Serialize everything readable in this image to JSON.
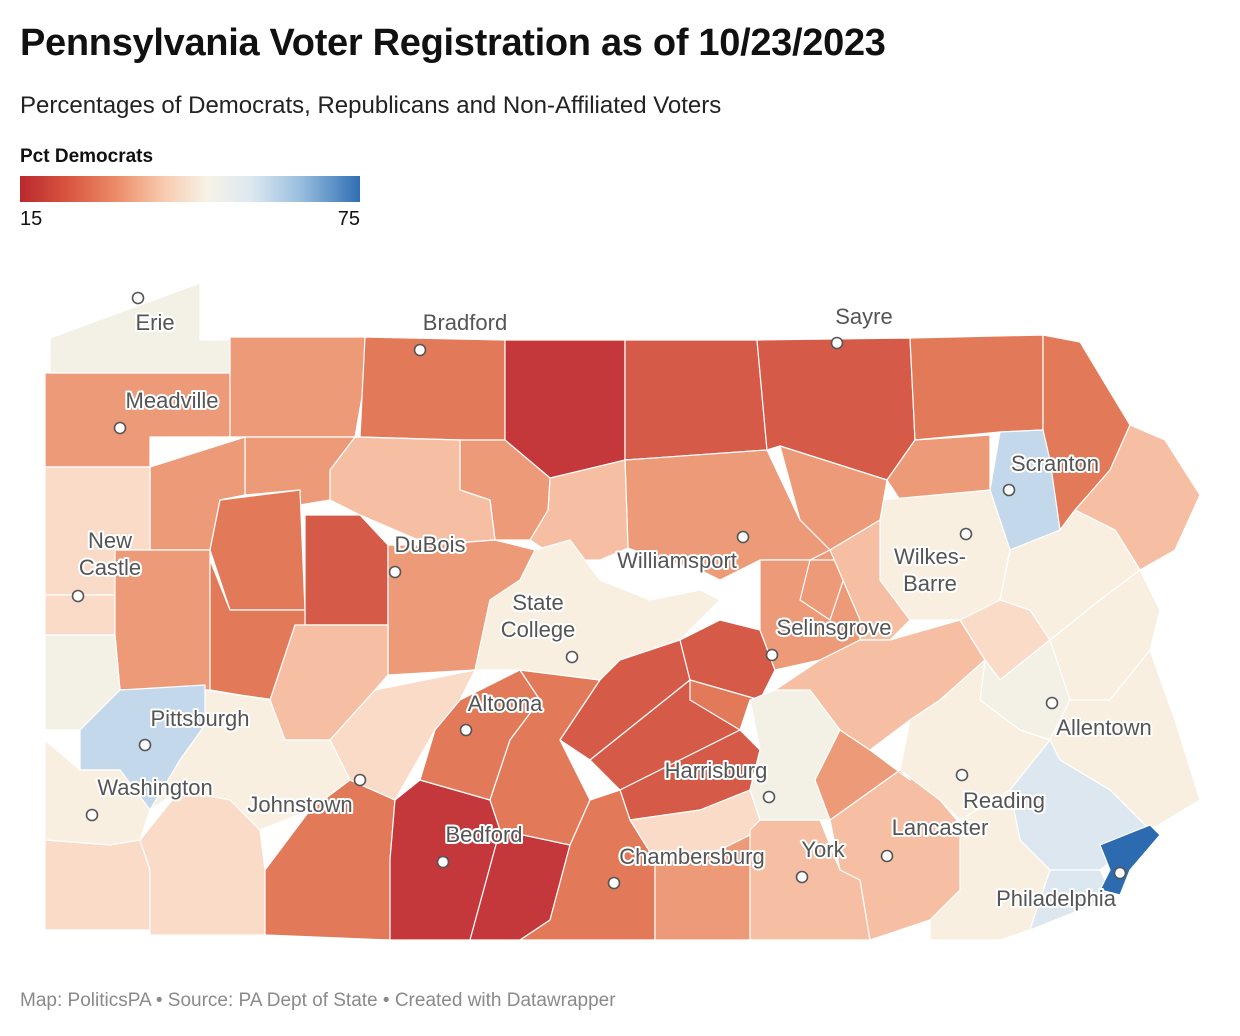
{
  "title": "Pennsylvania Voter Registration as of 10/23/2023",
  "subtitle": "Percentages of Democrats, Republicans and Non-Affiliated Voters",
  "legend": {
    "title": "Pct Democrats",
    "min": "15",
    "max": "75"
  },
  "footer": "Map: PoliticsPA • Source: PA Dept of State • Created with Datawrapper",
  "colors": {
    "dark_red": "#c4373a",
    "red": "#d55a48",
    "orange_red": "#e27a5a",
    "salmon": "#ec9a78",
    "light_salmon": "#f6bfa3",
    "peach": "#fadbc8",
    "cream": "#f8efe0",
    "neutral": "#f3f1e6",
    "light_blue": "#c3d8ea",
    "pale_blue": "#dde7ef",
    "blue": "#2c6bb0"
  },
  "cities": [
    {
      "name": "Erie",
      "lines": [
        "Erie"
      ]
    },
    {
      "name": "Meadville",
      "lines": [
        "Meadville"
      ]
    },
    {
      "name": "New Castle",
      "lines": [
        "New",
        "Castle"
      ]
    },
    {
      "name": "Pittsburgh",
      "lines": [
        "Pittsburgh"
      ]
    },
    {
      "name": "Washington",
      "lines": [
        "Washington"
      ]
    },
    {
      "name": "Johnstown",
      "lines": [
        "Johnstown"
      ]
    },
    {
      "name": "Bradford",
      "lines": [
        "Bradford"
      ]
    },
    {
      "name": "DuBois",
      "lines": [
        "DuBois"
      ]
    },
    {
      "name": "State College",
      "lines": [
        "State",
        "College"
      ]
    },
    {
      "name": "Altoona",
      "lines": [
        "Altoona"
      ]
    },
    {
      "name": "Bedford",
      "lines": [
        "Bedford"
      ]
    },
    {
      "name": "Williamsport",
      "lines": [
        "Williamsport"
      ]
    },
    {
      "name": "Selinsgrove",
      "lines": [
        "Selinsgrove"
      ]
    },
    {
      "name": "Harrisburg",
      "lines": [
        "Harrisburg"
      ]
    },
    {
      "name": "Chambersburg",
      "lines": [
        "Chambersburg"
      ]
    },
    {
      "name": "York",
      "lines": [
        "York"
      ]
    },
    {
      "name": "Lancaster",
      "lines": [
        "Lancaster"
      ]
    },
    {
      "name": "Reading",
      "lines": [
        "Reading"
      ]
    },
    {
      "name": "Sayre",
      "lines": [
        "Sayre"
      ]
    },
    {
      "name": "Scranton",
      "lines": [
        "Scranton"
      ]
    },
    {
      "name": "Wilkes-Barre",
      "lines": [
        "Wilkes-",
        "Barre"
      ]
    },
    {
      "name": "Allentown",
      "lines": [
        "Allentown"
      ]
    },
    {
      "name": "Philadelphia",
      "lines": [
        "Philadelphia"
      ]
    }
  ]
}
